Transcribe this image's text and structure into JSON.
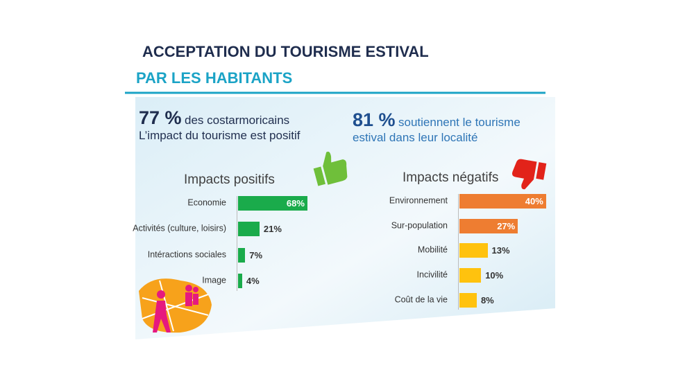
{
  "title": "ACCEPTATION DU TOURISME ESTIVAL",
  "subtitle": "PAR LES HABITANTS",
  "stats": [
    {
      "figure": "77 %",
      "lines": [
        "des costarmoricains",
        "L’impact du tourisme est positif"
      ]
    },
    {
      "figure": "81 %",
      "lines": [
        "soutiennent le tourisme",
        "estival dans leur localité"
      ]
    }
  ],
  "chart_data": [
    {
      "type": "bar",
      "orientation": "horizontal",
      "title": "Impacts positifs",
      "categories": [
        "Economie",
        "Activités (culture, loisirs)",
        "Intéractions sociales",
        "Image"
      ],
      "values": [
        68,
        21,
        7,
        4
      ],
      "value_labels": [
        "68%",
        "21%",
        "7%",
        "4%"
      ],
      "colors": [
        "#1aab4b",
        "#1aab4b",
        "#1aab4b",
        "#1aab4b"
      ],
      "xlim": [
        0,
        100
      ]
    },
    {
      "type": "bar",
      "orientation": "horizontal",
      "title": "Impacts négatifs",
      "categories": [
        "Environnement",
        "Sur-population",
        "Mobilité",
        "Incivilité",
        "Coût de la vie"
      ],
      "values": [
        40,
        27,
        13,
        10,
        8
      ],
      "value_labels": [
        "40%",
        "27%",
        "13%",
        "10%",
        "8%"
      ],
      "colors": [
        "#ee7d31",
        "#ee7d31",
        "#ffc20e",
        "#ffc20e",
        "#ffc20e"
      ],
      "xlim": [
        0,
        100
      ]
    }
  ]
}
